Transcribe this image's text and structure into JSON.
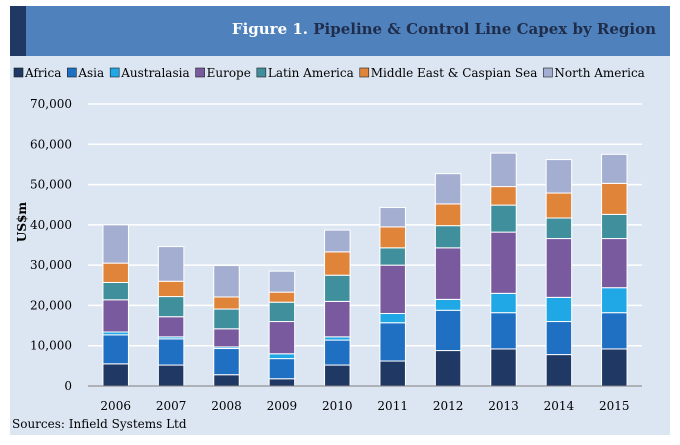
{
  "figure": {
    "label": "Figure 1.",
    "title": "Pipeline & Control Line Capex by Region",
    "source": "Sources:  Infield Systems Ltd"
  },
  "colors": {
    "header_bg": "#4f81bd",
    "header_accent": "#1f3864",
    "panel_bg": "#dce6f2"
  },
  "chart_data": {
    "type": "bar",
    "stacked": true,
    "title": "Pipeline & Control Line Capex by Region",
    "xlabel": "",
    "ylabel": "US$m",
    "ylim": [
      0,
      70000
    ],
    "yticks": [
      0,
      10000,
      20000,
      30000,
      40000,
      50000,
      60000,
      70000
    ],
    "ytick_labels": [
      "0",
      "10,000",
      "20,000",
      "30,000",
      "40,000",
      "50,000",
      "60,000",
      "70,000"
    ],
    "grid": true,
    "legend_position": "top",
    "categories": [
      "2006",
      "2007",
      "2008",
      "2009",
      "2010",
      "2011",
      "2012",
      "2013",
      "2014",
      "2015"
    ],
    "series": [
      {
        "name": "Africa",
        "color": "#1f3864",
        "values": [
          5500,
          5200,
          2800,
          1800,
          5200,
          6200,
          8800,
          9200,
          7800,
          9200
        ]
      },
      {
        "name": "Asia",
        "color": "#1f6fc3",
        "values": [
          7200,
          6500,
          6500,
          5000,
          6200,
          9500,
          10000,
          9000,
          8200,
          9000
        ]
      },
      {
        "name": "Australasia",
        "color": "#1fa7e6",
        "values": [
          700,
          500,
          400,
          1200,
          800,
          2300,
          2700,
          4800,
          6000,
          6200
        ]
      },
      {
        "name": "Europe",
        "color": "#7a5a9e",
        "values": [
          8000,
          5000,
          4500,
          8000,
          8800,
          12000,
          12800,
          15200,
          14600,
          12200
        ]
      },
      {
        "name": "Latin America",
        "color": "#3f8f9c",
        "values": [
          4300,
          5000,
          4900,
          4800,
          6500,
          4300,
          5500,
          6700,
          5100,
          6000
        ]
      },
      {
        "name": "Middle East & Caspian Sea",
        "color": "#e0843a",
        "values": [
          4800,
          3800,
          3000,
          2500,
          5800,
          5200,
          5400,
          4600,
          6200,
          7700
        ]
      },
      {
        "name": "North America",
        "color": "#a3aed0",
        "values": [
          9500,
          8600,
          7800,
          5200,
          5400,
          4800,
          7500,
          8300,
          8300,
          7200
        ]
      }
    ]
  }
}
